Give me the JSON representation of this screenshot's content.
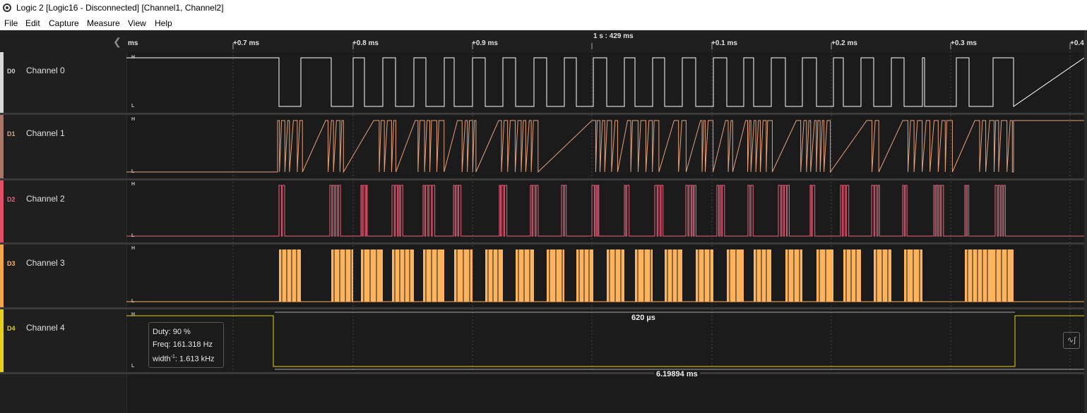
{
  "window": {
    "title": "Logic 2 [Logic16 - Disconnected] [Channel1, Channel2]",
    "icon": "logic-app-icon"
  },
  "menu": [
    "File",
    "Edit",
    "Capture",
    "Measure",
    "View",
    "Help"
  ],
  "timeline": {
    "timestamp": "1 s : 429 ms",
    "ticks": [
      "ms",
      "+0.7 ms",
      "+0.8 ms",
      "+0.9 ms",
      "+0.1 ms",
      "+0.2 ms",
      "+0.3 ms",
      "+0.4"
    ]
  },
  "level_labels": {
    "high": "H",
    "low": "L"
  },
  "channels": [
    {
      "code": "D0",
      "name": "Channel 0",
      "color": "#ffffff"
    },
    {
      "code": "D1",
      "name": "Channel 1",
      "color": "#e6a07a"
    },
    {
      "code": "D2",
      "name": "Channel 2",
      "color": "#f0607a"
    },
    {
      "code": "D3",
      "name": "Channel 3",
      "color": "#ffb35c"
    },
    {
      "code": "D4",
      "name": "Channel 4",
      "color": "#e6d01e"
    }
  ],
  "strip_colors": [
    "#d9d9d9",
    "#a9776a",
    "#e0506a",
    "#f5a54a",
    "#e6d01e"
  ],
  "measurement": {
    "pulse_width": "620 µs",
    "period": "6.19894 ms",
    "duty_label": "Duty:",
    "duty": "90 %",
    "freq_label": "Freq:",
    "freq": "161.318 Hz",
    "width_label": "width",
    "width_sup": "-1",
    "width_value": ": 1.613 kHz"
  },
  "icons": {
    "collapse": "chevron-left-icon",
    "measure_toggle": "waveform-measure-icon"
  }
}
